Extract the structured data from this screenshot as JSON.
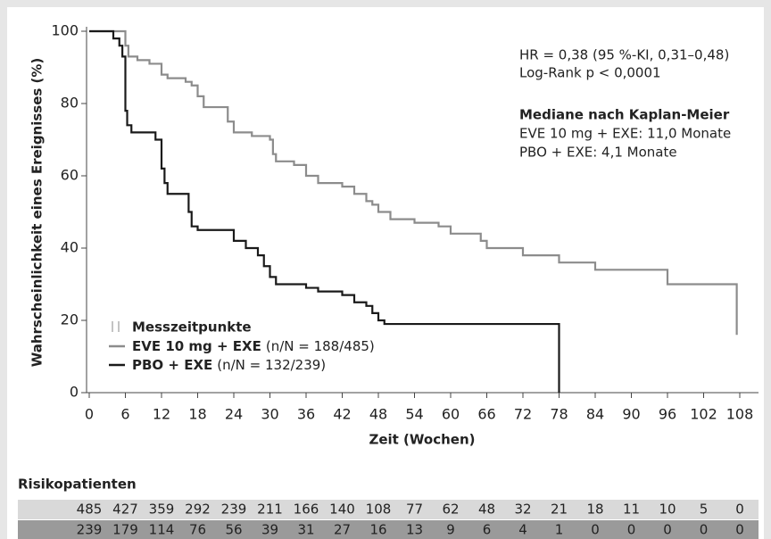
{
  "chart_data": {
    "type": "line",
    "step": true,
    "x_label": "Zeit (Wochen)",
    "y_label": "Wahrscheinlichkeit eines Ereignisses (%)",
    "xlim": [
      0,
      108
    ],
    "xticks": [
      0,
      6,
      12,
      18,
      24,
      30,
      36,
      42,
      48,
      54,
      60,
      66,
      72,
      78,
      84,
      90,
      96,
      102,
      108
    ],
    "ylim": [
      0,
      100
    ],
    "yticks": [
      0,
      20,
      40,
      60,
      80,
      100
    ],
    "annotations": [
      "HR = 0,38 (95 %-KI, 0,31–0,48)",
      "Log-Rank p < 0,0001",
      "Mediane nach Kaplan-Meier",
      "EVE 10 mg + EXE: 11,0 Monate",
      "PBO + EXE: 4,1 Monate"
    ],
    "censor_legend": "Messzeitpunkte",
    "series": [
      {
        "name": "EVE 10 mg + EXE",
        "legend_note": "(n/N = 188/485)",
        "color": "#8c8c8c",
        "x": [
          0,
          5,
          6,
          6.5,
          8,
          10,
          12,
          13,
          16,
          17,
          18,
          19,
          22,
          23,
          24,
          27,
          30,
          30.5,
          31,
          34,
          36,
          38,
          42,
          44,
          46,
          47,
          48,
          50,
          54,
          58,
          60,
          65,
          66,
          72,
          78,
          84,
          96,
          107,
          107.5
        ],
        "values": [
          100,
          100,
          96,
          93,
          92,
          91,
          88,
          87,
          86,
          85,
          82,
          79,
          79,
          75,
          72,
          71,
          70,
          66,
          64,
          63,
          60,
          58,
          57,
          55,
          53,
          52,
          50,
          48,
          47,
          46,
          44,
          42,
          40,
          38,
          36,
          34,
          30,
          30,
          16
        ]
      },
      {
        "name": "PBO + EXE",
        "legend_note": "(n/N = 132/239)",
        "color": "#1a1a1a",
        "x": [
          0,
          3,
          4,
          5,
          5.5,
          6,
          6.3,
          7,
          11,
          12,
          12.5,
          13,
          16.5,
          17,
          18,
          23,
          24,
          26,
          28,
          29,
          30,
          31,
          36,
          38,
          42,
          44,
          46,
          47,
          48,
          49,
          78,
          78
        ],
        "values": [
          100,
          100,
          98,
          96,
          93,
          78,
          74,
          72,
          70,
          62,
          58,
          55,
          50,
          46,
          45,
          45,
          42,
          40,
          38,
          35,
          32,
          30,
          29,
          28,
          27,
          25,
          24,
          22,
          20,
          19,
          19,
          0
        ]
      }
    ],
    "risk_table": {
      "title": "Risikopatienten",
      "row_colors": [
        "#d9d9d9",
        "#9a9a9a"
      ],
      "rows": [
        [
          485,
          427,
          359,
          292,
          239,
          211,
          166,
          140,
          108,
          77,
          62,
          48,
          32,
          21,
          18,
          11,
          10,
          5,
          0
        ],
        [
          239,
          179,
          114,
          76,
          56,
          39,
          31,
          27,
          16,
          13,
          9,
          6,
          4,
          1,
          0,
          0,
          0,
          0,
          0
        ]
      ]
    }
  }
}
